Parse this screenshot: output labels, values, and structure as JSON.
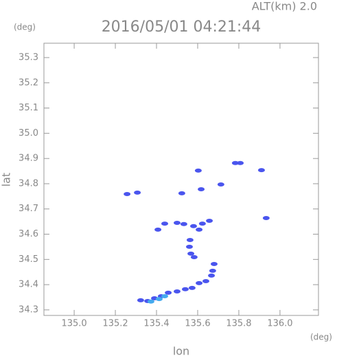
{
  "chart_data": {
    "type": "scatter",
    "title": "2016/05/01 04:21:44",
    "subtitle": "ALT(km) 2.0",
    "xlabel": "lon",
    "ylabel": "lat",
    "x_unit": "(deg)",
    "y_unit": "(deg)",
    "xlim": [
      134.853,
      136.187
    ],
    "ylim": [
      34.278,
      35.357
    ],
    "xticks": [
      {
        "value": 135,
        "label": "135.0"
      },
      135.2,
      135.4,
      135.6,
      135.8,
      {
        "value": 136,
        "label": "136.0"
      }
    ],
    "yticks": [
      34.3,
      34.4,
      34.5,
      34.6,
      34.7,
      34.8,
      34.9,
      {
        "value": 35,
        "label": "35.0"
      },
      35.1,
      35.2,
      35.3
    ],
    "series": [
      {
        "color": "#4a55ee",
        "x": [
          135.257,
          135.307,
          135.603,
          135.783,
          135.807,
          135.91,
          135.713,
          135.617,
          135.933,
          135.5,
          135.533,
          135.58,
          135.623,
          135.657,
          135.44,
          135.563,
          135.56,
          135.567,
          135.583,
          135.607,
          135.68,
          135.673,
          135.667,
          135.64,
          135.607,
          135.573,
          135.54,
          135.5,
          135.457,
          135.423,
          135.39,
          135.357,
          135.323,
          135.407,
          135.523
        ],
        "values": [
          34.759,
          34.765,
          34.852,
          34.882,
          34.882,
          34.854,
          34.797,
          34.778,
          34.664,
          34.645,
          34.64,
          34.632,
          34.642,
          34.653,
          34.642,
          34.577,
          34.55,
          34.523,
          34.509,
          34.618,
          34.482,
          34.455,
          34.436,
          34.414,
          34.406,
          34.387,
          34.382,
          34.373,
          34.368,
          34.354,
          34.346,
          34.335,
          34.338,
          34.618,
          34.762
        ]
      },
      {
        "color": "#44aaee",
        "x": [
          135.44,
          135.413,
          135.373
        ],
        "values": [
          34.354,
          34.343,
          34.333
        ]
      }
    ]
  }
}
